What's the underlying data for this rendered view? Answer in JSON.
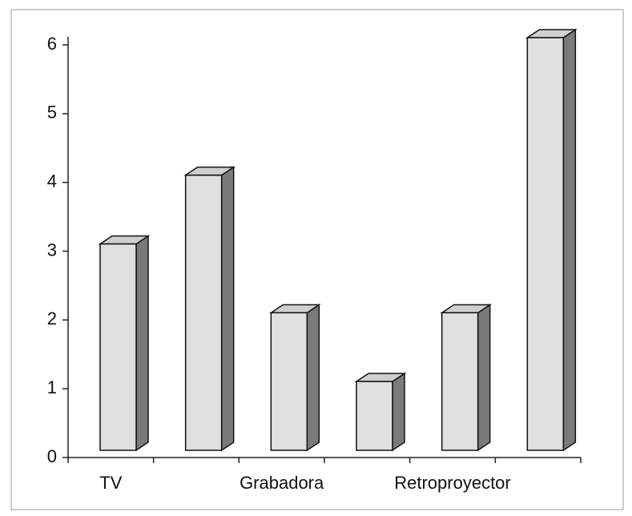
{
  "chart_data": {
    "type": "bar3d",
    "categories": [
      "TV",
      null,
      "Grabadora",
      null,
      "Retroproyector",
      null
    ],
    "values": [
      3,
      4,
      2,
      1,
      2,
      6
    ],
    "color": "#e0e0e0",
    "side_color": "#7a7a7a",
    "top_color": "#cfcfcf",
    "ylim": [
      0,
      6
    ],
    "yticks": [
      0,
      1,
      2,
      3,
      4,
      5,
      6
    ],
    "grid": false
  }
}
